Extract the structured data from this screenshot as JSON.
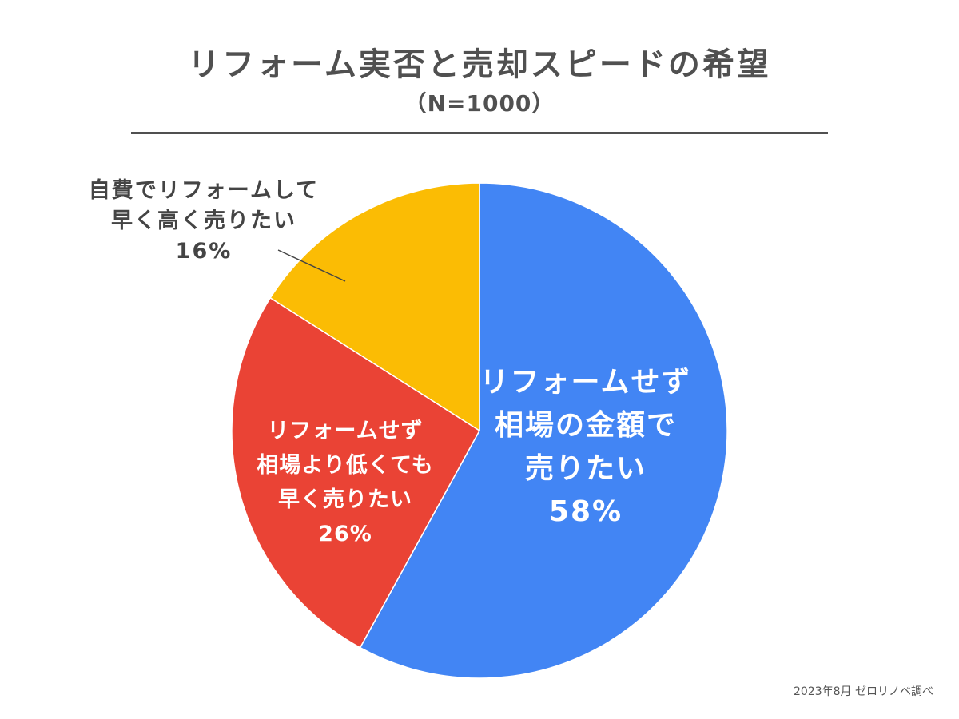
{
  "chart_data": {
    "type": "pie",
    "title": "リフォーム実否と売却スピードの希望",
    "subtitle": "（N=1000）",
    "start_angle_deg": 0,
    "direction": "clockwise",
    "slices": [
      {
        "label_lines": [
          "リフォームせず",
          "相場の金額で",
          "売りたい"
        ],
        "value": 58,
        "value_text": "58%",
        "color": "#4285F4"
      },
      {
        "label_lines": [
          "リフォームせず",
          "相場より低くても",
          "早く売りたい"
        ],
        "value": 26,
        "value_text": "26%",
        "color": "#EA4335"
      },
      {
        "label_lines": [
          "自費でリフォームして",
          "早く高く売りたい"
        ],
        "value": 16,
        "value_text": "16%",
        "color": "#FBBC04"
      }
    ],
    "source_note": "2023年8月 ゼロリノベ調べ"
  }
}
